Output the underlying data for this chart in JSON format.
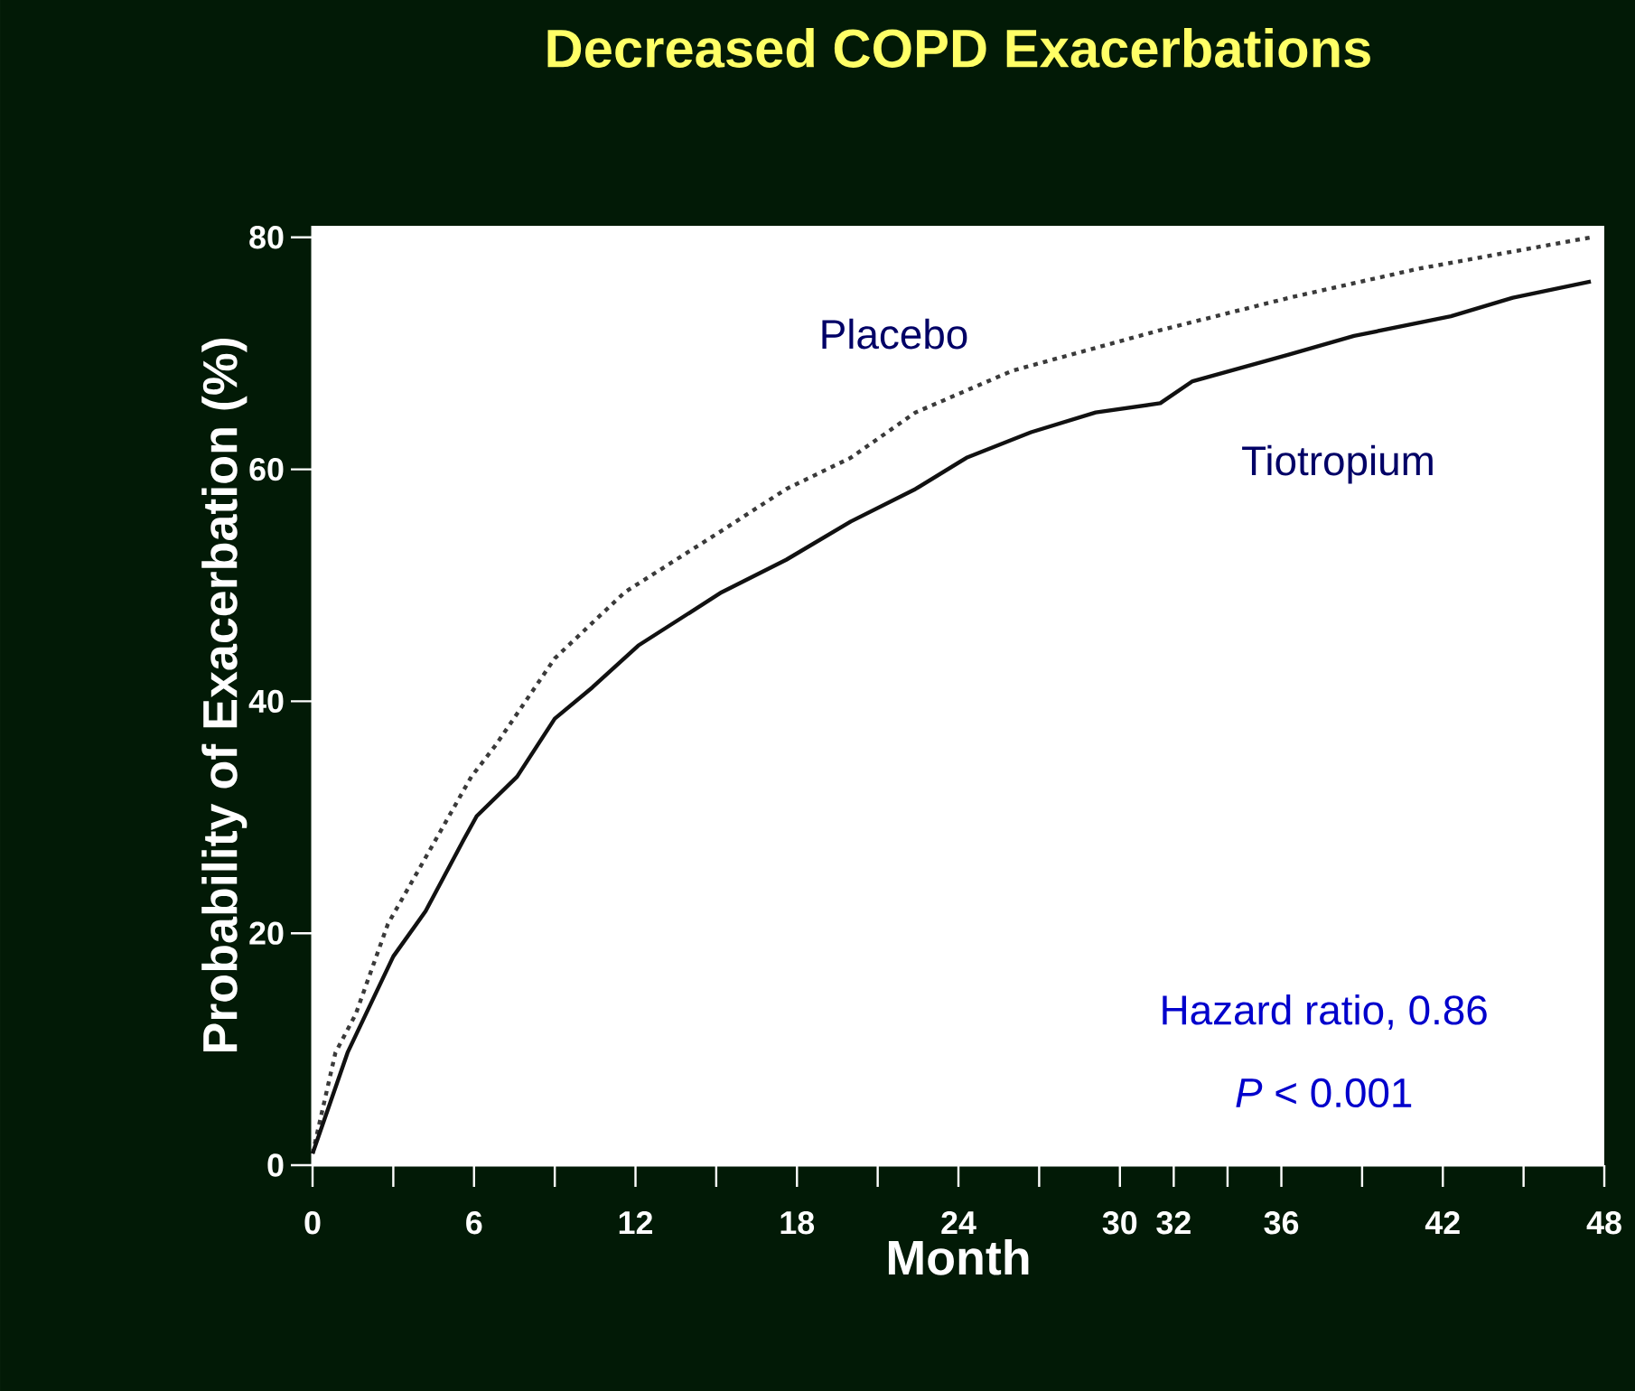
{
  "chart_data": {
    "type": "line",
    "title": "Decreased COPD Exacerbations",
    "xlabel": "Month",
    "ylabel": "Probability of Exacerbation (%)",
    "xlim": [
      0,
      48
    ],
    "ylim": [
      0,
      81
    ],
    "xticks": [
      0,
      {
        "value": 3,
        "label": null
      },
      6,
      {
        "value": 9,
        "label": null
      },
      12,
      {
        "value": 15,
        "label": null
      },
      18,
      {
        "value": 21,
        "label": null
      },
      24,
      {
        "value": 27,
        "label": null
      },
      30,
      32,
      {
        "value": 34,
        "label": null
      },
      36,
      {
        "value": 39,
        "label": null
      },
      42,
      {
        "value": 45,
        "label": null
      },
      48
    ],
    "yticks": [
      0,
      20,
      40,
      60,
      80
    ],
    "grid": false,
    "legend": false,
    "marker": "none",
    "series": [
      {
        "name": "Placebo",
        "color": "#3a3a3a",
        "line_style": "dotted",
        "x": [
          0,
          0.85,
          1.6,
          2.8,
          4,
          5.9,
          6.8,
          9,
          11.6,
          15.2,
          17.6,
          20,
          22.4,
          26,
          31.5,
          36.3,
          41.1,
          47.5
        ],
        "values": [
          1,
          9.7,
          13,
          20.8,
          25.7,
          33.5,
          36.2,
          43.7,
          49.4,
          54.7,
          58.3,
          61,
          64.9,
          68.5,
          72,
          74.8,
          77.3,
          80
        ]
      },
      {
        "name": "Tiotropium",
        "color": "#111111",
        "line_style": "solid",
        "x": [
          0,
          1.3,
          3,
          4.2,
          5.6,
          6.1,
          7.6,
          9,
          10.4,
          12.1,
          15.2,
          17.6,
          20,
          22.4,
          24.3,
          26.7,
          29.1,
          31.5,
          32.7,
          36.3,
          38.7,
          42.3,
          44.6,
          47.5
        ],
        "values": [
          1,
          9.7,
          18,
          21.9,
          28,
          30.1,
          33.5,
          38.5,
          41.2,
          44.8,
          49.4,
          52.2,
          55.5,
          58.3,
          61,
          63.2,
          64.9,
          65.7,
          67.6,
          69.9,
          71.5,
          73.2,
          74.8,
          76.2
        ]
      }
    ],
    "annotations": [
      "Hazard ratio, 0.86",
      "*P* < 0.001"
    ]
  }
}
